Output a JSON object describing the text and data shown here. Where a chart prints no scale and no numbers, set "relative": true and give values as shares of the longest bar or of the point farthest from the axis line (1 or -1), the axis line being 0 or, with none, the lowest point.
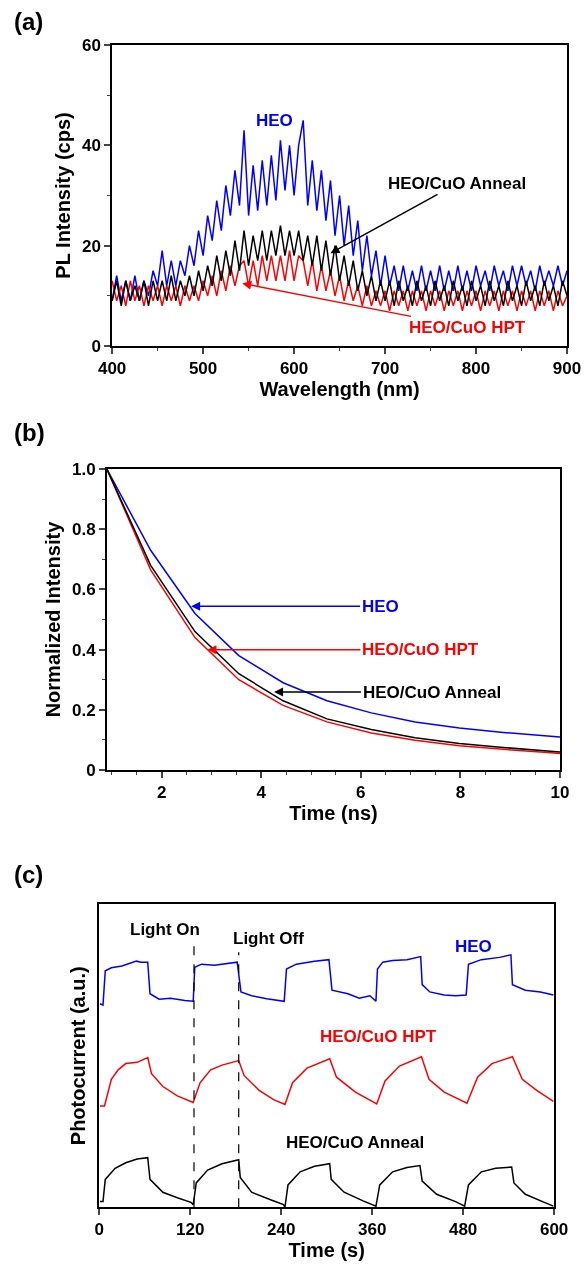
{
  "chart_data": [
    {
      "type": "line",
      "title": "(a)",
      "xlabel": "Wavelength (nm)",
      "ylabel": "PL Intensity (cps)",
      "x": [
        400,
        405,
        410,
        415,
        420,
        425,
        430,
        435,
        440,
        445,
        450,
        455,
        460,
        465,
        470,
        475,
        480,
        485,
        490,
        495,
        500,
        505,
        510,
        515,
        520,
        525,
        530,
        535,
        540,
        545,
        550,
        555,
        560,
        565,
        570,
        575,
        580,
        585,
        590,
        595,
        600,
        605,
        610,
        615,
        620,
        625,
        630,
        635,
        640,
        645,
        650,
        655,
        660,
        665,
        670,
        675,
        680,
        685,
        690,
        695,
        700,
        705,
        710,
        715,
        720,
        725,
        730,
        735,
        740,
        745,
        750,
        755,
        760,
        765,
        770,
        775,
        780,
        785,
        790,
        795,
        800,
        805,
        810,
        815,
        820,
        825,
        830,
        835,
        840,
        845,
        850,
        855,
        860,
        865,
        870,
        875,
        880,
        885,
        890,
        895,
        900
      ],
      "series": [
        {
          "name": "HEO",
          "color": "#0000ff",
          "values": [
            9,
            14,
            9,
            13,
            9,
            14,
            9,
            13,
            10,
            15,
            12,
            19,
            12,
            17,
            12,
            17,
            14,
            20,
            16,
            23,
            18,
            26,
            21,
            29,
            23,
            32,
            26,
            35,
            28,
            43,
            26,
            36,
            27,
            37,
            28,
            38,
            29,
            41,
            31,
            40,
            30,
            40,
            45,
            28,
            37,
            27,
            35,
            25,
            33,
            22,
            30,
            20,
            28,
            18,
            25,
            15,
            22,
            14,
            19,
            12,
            18,
            12,
            16,
            11,
            16,
            11,
            15,
            11,
            16,
            11,
            15,
            11,
            16,
            11,
            15,
            11,
            16,
            11,
            15,
            11,
            16,
            12,
            15,
            11,
            16,
            12,
            15,
            11,
            16,
            12,
            16,
            12,
            15,
            11,
            16,
            12,
            15,
            12,
            16,
            12,
            15
          ]
        },
        {
          "name": "HEO/CuO HPT",
          "color": "#ff0000",
          "values": [
            13,
            9,
            12,
            8,
            13,
            9,
            12,
            8,
            12,
            9,
            12,
            8,
            12,
            9,
            12,
            8,
            12,
            9,
            12,
            9,
            13,
            10,
            14,
            10,
            15,
            11,
            16,
            12,
            16,
            17,
            12,
            17,
            12,
            18,
            13,
            18,
            13,
            18,
            13,
            19,
            13,
            18,
            17,
            12,
            17,
            11,
            16,
            11,
            15,
            10,
            14,
            9,
            13,
            9,
            12,
            8,
            12,
            8,
            11,
            8,
            11,
            7,
            11,
            8,
            11,
            7,
            11,
            8,
            11,
            7,
            11,
            8,
            11,
            7,
            11,
            8,
            11,
            7,
            11,
            8,
            11,
            7,
            11,
            8,
            11,
            7,
            11,
            8,
            11,
            7,
            11,
            8,
            11,
            7,
            11,
            8,
            11,
            7,
            11,
            8,
            10
          ]
        },
        {
          "name": "HEO/CuO Anneal",
          "color": "#000000",
          "values": [
            9,
            13,
            8,
            13,
            9,
            12,
            9,
            13,
            8,
            13,
            9,
            13,
            9,
            14,
            9,
            13,
            10,
            14,
            10,
            15,
            11,
            16,
            12,
            18,
            13,
            19,
            14,
            21,
            15,
            23,
            16,
            22,
            17,
            23,
            17,
            23,
            18,
            24,
            18,
            23,
            18,
            23,
            17,
            22,
            16,
            22,
            15,
            21,
            14,
            20,
            13,
            18,
            12,
            17,
            11,
            15,
            10,
            14,
            9,
            13,
            9,
            13,
            8,
            13,
            9,
            12,
            8,
            13,
            9,
            12,
            8,
            13,
            9,
            12,
            8,
            13,
            9,
            12,
            8,
            13,
            9,
            12,
            8,
            13,
            9,
            12,
            8,
            13,
            9,
            12,
            8,
            13,
            9,
            12,
            8,
            13,
            9,
            12,
            8,
            13,
            10
          ]
        }
      ],
      "xlim": [
        400,
        900
      ],
      "xticks": [
        400,
        500,
        600,
        700,
        800,
        900
      ],
      "ylim": [
        0,
        60
      ],
      "yticks": [
        0,
        20,
        40,
        60
      ],
      "line_style": "solid"
    },
    {
      "type": "line",
      "title": "(b)",
      "xlabel": "Time (ns)",
      "ylabel": "Normalized Intensity",
      "x": [
        0.9,
        1.78,
        2.67,
        3.55,
        4.44,
        5.32,
        6.21,
        7.09,
        7.98,
        8.86,
        9.75,
        10
      ],
      "series": [
        {
          "name": "HEO",
          "color": "#0000ff",
          "values": [
            1.0,
            0.73,
            0.52,
            0.38,
            0.29,
            0.23,
            0.19,
            0.16,
            0.14,
            0.125,
            0.113,
            0.11
          ]
        },
        {
          "name": "HEO/CuO HPT",
          "color": "#ff0000",
          "values": [
            1.0,
            0.665,
            0.44,
            0.3,
            0.215,
            0.16,
            0.123,
            0.099,
            0.081,
            0.069,
            0.058,
            0.055
          ]
        },
        {
          "name": "HEO/CuO Anneal",
          "color": "#000000",
          "values": [
            1.0,
            0.68,
            0.46,
            0.32,
            0.23,
            0.17,
            0.135,
            0.107,
            0.088,
            0.075,
            0.063,
            0.06
          ]
        }
      ],
      "xlim": [
        0.9,
        10
      ],
      "xticks": [
        2,
        4,
        6,
        8,
        10
      ],
      "ylim": [
        0,
        1
      ],
      "yticks": [
        0,
        0.2,
        0.4,
        0.6,
        0.8,
        {
          "value": 1,
          "label": "1.0"
        }
      ],
      "line_style": "solid"
    },
    {
      "type": "line",
      "title": "(c)",
      "xlabel": "Time (s)",
      "ylabel": "Photocurrent (a.u.)",
      "relative": true,
      "series": [
        {
          "name": "HEO",
          "color": "#0000ff",
          "x": [
            1,
            5,
            8,
            16,
            30,
            49,
            55,
            64,
            67,
            79,
            94,
            113,
            124,
            126,
            135,
            152,
            182,
            187,
            201,
            221,
            244,
            247,
            260,
            284,
            303,
            307,
            328,
            343,
            357,
            365,
            367,
            374,
            387,
            406,
            424,
            426,
            436,
            455,
            470,
            484,
            487,
            504,
            528,
            543,
            545,
            562,
            582,
            599
          ],
          "values": [
            0.806,
            0.801,
            0.937,
            0.949,
            0.956,
            0.975,
            0.971,
            0.971,
            0.846,
            0.824,
            0.828,
            0.819,
            0.816,
            0.951,
            0.963,
            0.959,
            0.971,
            0.853,
            0.838,
            0.826,
            0.816,
            0.944,
            0.963,
            0.975,
            0.981,
            0.86,
            0.846,
            0.828,
            0.838,
            0.816,
            0.944,
            0.971,
            0.978,
            0.981,
            0.993,
            0.882,
            0.853,
            0.841,
            0.838,
            0.841,
            0.963,
            0.981,
            0.99,
            1.0,
            0.882,
            0.86,
            0.853,
            0.841
          ]
        },
        {
          "name": "HEO/CuO HPT",
          "color": "#ff0000",
          "x": [
            1,
            7,
            16,
            25,
            35,
            50,
            64,
            69,
            84,
            103,
            124,
            133,
            147,
            162,
            184,
            191,
            211,
            230,
            245,
            255,
            274,
            304,
            313,
            338,
            366,
            377,
            396,
            425,
            435,
            455,
            485,
            499,
            518,
            545,
            558,
            577,
            599
          ],
          "values": [
            0.401,
            0.401,
            0.507,
            0.544,
            0.569,
            0.574,
            0.593,
            0.529,
            0.478,
            0.441,
            0.415,
            0.493,
            0.544,
            0.563,
            0.581,
            0.522,
            0.463,
            0.426,
            0.407,
            0.493,
            0.551,
            0.588,
            0.515,
            0.456,
            0.409,
            0.5,
            0.559,
            0.596,
            0.507,
            0.456,
            0.412,
            0.515,
            0.569,
            0.596,
            0.507,
            0.463,
            0.419
          ]
        },
        {
          "name": "HEO/CuO Anneal",
          "color": "#000000",
          "x": [
            1,
            5,
            8,
            21,
            35,
            50,
            64,
            67,
            84,
            103,
            121,
            124,
            128,
            143,
            162,
            184,
            186,
            201,
            226,
            243,
            245,
            249,
            265,
            284,
            304,
            306,
            323,
            348,
            365,
            370,
            387,
            406,
            423,
            426,
            445,
            470,
            482,
            487,
            504,
            523,
            544,
            547,
            562,
            587,
            599
          ],
          "values": [
            0.022,
            0.022,
            0.11,
            0.154,
            0.176,
            0.191,
            0.196,
            0.11,
            0.059,
            0.037,
            0.019,
            0.01,
            0.096,
            0.147,
            0.172,
            0.188,
            0.118,
            0.059,
            0.029,
            0.01,
            0.0,
            0.088,
            0.14,
            0.162,
            0.172,
            0.11,
            0.059,
            0.025,
            0.004,
            0.088,
            0.14,
            0.157,
            0.165,
            0.103,
            0.051,
            0.022,
            0.004,
            0.088,
            0.14,
            0.154,
            0.159,
            0.096,
            0.051,
            0.019,
            0.004
          ]
        }
      ],
      "xlim": [
        0,
        600
      ],
      "xticks": [
        0,
        120,
        240,
        360,
        480,
        600
      ],
      "line_style": "solid",
      "ref_lines": [
        {
          "axis": "x",
          "value": 125,
          "label": "Light On",
          "color": "#000000",
          "line_style": "dashed"
        },
        {
          "axis": "x",
          "value": 184,
          "label": "Light Off",
          "color": "#000000",
          "line_style": "dashed"
        }
      ]
    }
  ]
}
